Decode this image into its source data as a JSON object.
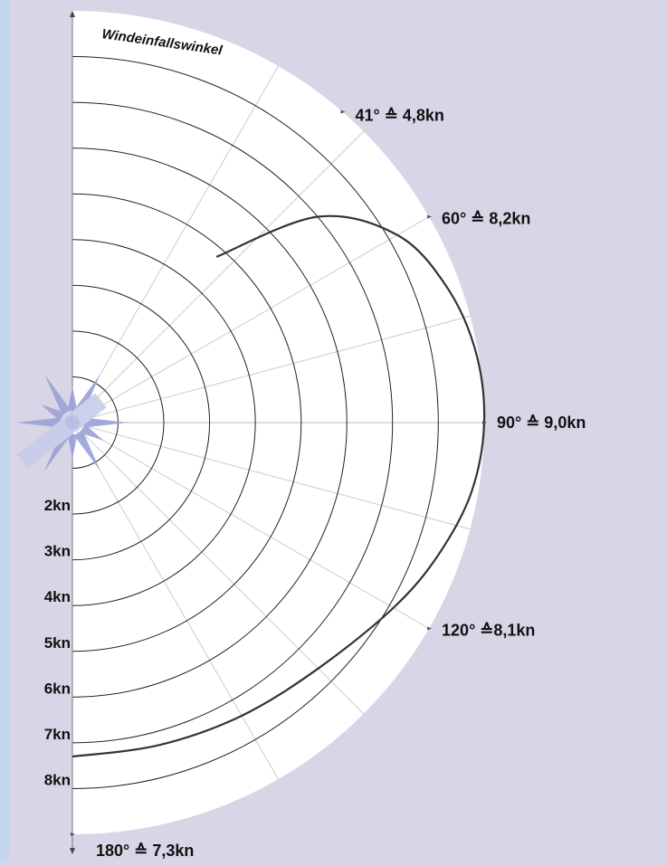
{
  "chart_data": {
    "type": "polar-line",
    "title": "",
    "axis_title": "Windeinfallswinkel",
    "speed_unit": "kn",
    "radial_rings": [
      "2kn",
      "3kn",
      "4kn",
      "5kn",
      "6kn",
      "7kn",
      "8kn"
    ],
    "radial_max_kn": 9,
    "angle_labels": [
      {
        "angle": 41,
        "text": "41° ≙ 4,8kn"
      },
      {
        "angle": 60,
        "text": "60° ≙ 8,2kn"
      },
      {
        "angle": 90,
        "text": "90° ≙ 9,0kn"
      },
      {
        "angle": 120,
        "text": "120° ≙8,1kn"
      },
      {
        "angle": 180,
        "text": "180° ≙ 7,3kn"
      }
    ],
    "series": [
      {
        "points": [
          {
            "angle": 41,
            "speed": 4.8
          },
          {
            "angle": 50,
            "speed": 7.0
          },
          {
            "angle": 60,
            "speed": 8.2
          },
          {
            "angle": 70,
            "speed": 8.7
          },
          {
            "angle": 80,
            "speed": 8.95
          },
          {
            "angle": 90,
            "speed": 9.0
          },
          {
            "angle": 100,
            "speed": 8.85
          },
          {
            "angle": 110,
            "speed": 8.5
          },
          {
            "angle": 120,
            "speed": 8.1
          },
          {
            "angle": 135,
            "speed": 7.6
          },
          {
            "angle": 150,
            "speed": 7.4
          },
          {
            "angle": 165,
            "speed": 7.3
          },
          {
            "angle": 180,
            "speed": 7.3
          }
        ]
      }
    ],
    "colors": {
      "background": "#d9d5e6",
      "plot_area": "#ffffff",
      "rings": "#222222",
      "curve": "#333333",
      "spokes": "#cccccc",
      "compass_rose": "#9aa3d6",
      "left_border": "#c4d5ee"
    }
  }
}
